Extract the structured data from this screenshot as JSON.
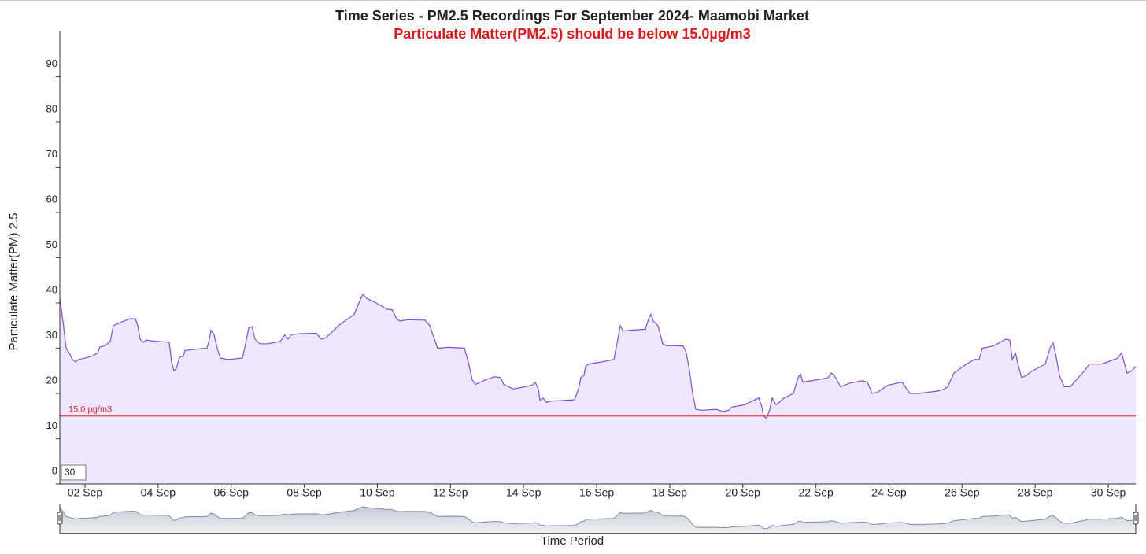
{
  "chart_data": {
    "type": "area",
    "title": "Time Series - PM2.5 Recordings For September 2024- Maamobi Market",
    "subtitle": "Particulate Matter(PM2.5) should be below 15.0µg/m3",
    "x_label": "Time Period",
    "y_label": "Particulate Matter(PM) 2.5",
    "color": "#7c4fe0",
    "fill_color": "#efe8fc",
    "range_box": "30",
    "threshold": {
      "value": 15,
      "label": "15.0 µg/m3",
      "color": "#e0202a"
    },
    "xlim": [
      1.311,
      30.752
    ],
    "xticks": [
      {
        "value": 2,
        "label": "02 Sep"
      },
      {
        "value": 4,
        "label": "04 Sep"
      },
      {
        "value": 6,
        "label": "06 Sep"
      },
      {
        "value": 8,
        "label": "08 Sep"
      },
      {
        "value": 10,
        "label": "10 Sep"
      },
      {
        "value": 12,
        "label": "12 Sep"
      },
      {
        "value": 14,
        "label": "14 Sep"
      },
      {
        "value": 16,
        "label": "16 Sep"
      },
      {
        "value": 18,
        "label": "18 Sep"
      },
      {
        "value": 20,
        "label": "20 Sep"
      },
      {
        "value": 22,
        "label": "22 Sep"
      },
      {
        "value": 24,
        "label": "24 Sep"
      },
      {
        "value": 26,
        "label": "26 Sep"
      },
      {
        "value": 28,
        "label": "28 Sep"
      },
      {
        "value": 30,
        "label": "30 Sep"
      }
    ],
    "ylim": [
      0,
      100
    ],
    "yticks": [
      0,
      10,
      20,
      30,
      40,
      50,
      60,
      70,
      80,
      90
    ],
    "x": [
      1.311,
      1.397,
      1.483,
      1.569,
      1.655,
      1.742,
      1.828,
      2.0,
      2.215,
      2.345,
      2.409,
      2.538,
      2.689,
      2.775,
      3.012,
      3.227,
      3.378,
      3.443,
      3.507,
      3.594,
      3.68,
      3.874,
      4.305,
      4.369,
      4.434,
      4.498,
      4.584,
      4.692,
      4.735,
      5.058,
      5.338,
      5.403,
      5.446,
      5.532,
      5.618,
      5.705,
      5.92,
      6.308,
      6.394,
      6.48,
      6.566,
      6.652,
      6.782,
      6.997,
      7.341,
      7.471,
      7.557,
      7.643,
      7.858,
      8.332,
      8.461,
      8.591,
      8.935,
      9.366,
      9.495,
      9.603,
      9.711,
      9.969,
      10.271,
      10.4,
      10.529,
      10.615,
      10.83,
      11.304,
      11.433,
      11.563,
      11.649,
      11.95,
      12.381,
      12.489,
      12.596,
      12.683,
      12.898,
      13.2,
      13.372,
      13.458,
      13.717,
      13.997,
      14.234,
      14.32,
      14.406,
      14.449,
      14.535,
      14.622,
      14.751,
      15.397,
      15.504,
      15.569,
      15.655,
      15.698,
      15.784,
      16.15,
      16.473,
      16.603,
      16.646,
      16.732,
      16.947,
      17.335,
      17.421,
      17.486,
      17.55,
      17.68,
      17.809,
      17.895,
      18.369,
      18.455,
      18.541,
      18.627,
      18.713,
      18.886,
      19.273,
      19.446,
      19.618,
      19.704,
      20.049,
      20.307,
      20.437,
      20.523,
      20.566,
      20.652,
      20.738,
      20.803,
      20.91,
      20.996,
      21.125,
      21.384,
      21.513,
      21.578,
      21.642,
      21.858,
      22.159,
      22.332,
      22.418,
      22.504,
      22.676,
      22.935,
      23.279,
      23.408,
      23.538,
      23.667,
      23.968,
      24.356,
      24.485,
      24.571,
      24.83,
      25.304,
      25.519,
      25.605,
      25.777,
      26.122,
      26.337,
      26.467,
      26.553,
      26.855,
      27.199,
      27.307,
      27.372,
      27.458,
      27.544,
      27.63,
      27.759,
      27.888,
      28.276,
      28.405,
      28.491,
      28.577,
      28.663,
      28.792,
      28.965,
      29.18,
      29.395,
      29.481,
      29.826,
      30.256,
      30.364,
      30.429,
      30.515,
      30.644,
      30.752
    ],
    "values": [
      41,
      36,
      30,
      29,
      27.5,
      27,
      27.5,
      27.8,
      28.3,
      29,
      30.3,
      30.5,
      31.5,
      35,
      35.8,
      36.5,
      36.5,
      35,
      32,
      31.3,
      31.8,
      31.6,
      31.3,
      27,
      25,
      25.5,
      28,
      28.3,
      29.5,
      29.8,
      30,
      32,
      34,
      33,
      30,
      27.8,
      27.5,
      27.8,
      31,
      34.5,
      34.8,
      32,
      31,
      31,
      31.5,
      33,
      32,
      33,
      33.2,
      33.3,
      32,
      32.3,
      35,
      37.5,
      40,
      42,
      41,
      40,
      38.6,
      38.5,
      36.5,
      36,
      36.3,
      36.2,
      35,
      32,
      30,
      30.2,
      30,
      27,
      23,
      22,
      22.8,
      23.7,
      23.5,
      22,
      21,
      21.4,
      21.8,
      22.5,
      21,
      18.5,
      19,
      18,
      18.3,
      18.6,
      21,
      23.5,
      24,
      26,
      26.5,
      27,
      27.5,
      33,
      35,
      33.8,
      34,
      34.2,
      36.5,
      37.5,
      36,
      35,
      31,
      30.6,
      30.5,
      29,
      25,
      20,
      16.5,
      16.3,
      16.5,
      16,
      16.3,
      17,
      17.5,
      18.5,
      19,
      17,
      15,
      14.5,
      16.5,
      19,
      17.5,
      18,
      19,
      20,
      23.5,
      24.3,
      22.5,
      22.8,
      23.2,
      23.5,
      24.5,
      24,
      21.5,
      22.3,
      22.8,
      22.5,
      20,
      20.2,
      21.8,
      22.5,
      21,
      20,
      20,
      20.5,
      21,
      21.5,
      24.5,
      26.5,
      27.5,
      27.5,
      30,
      30.5,
      32,
      31.8,
      27.5,
      29,
      26,
      23.5,
      24,
      24.8,
      26.5,
      30,
      31.2,
      28,
      24,
      21.5,
      21.5,
      23.5,
      25.5,
      26.5,
      26.5,
      27.8,
      29,
      27,
      24.5,
      25,
      26
    ]
  }
}
